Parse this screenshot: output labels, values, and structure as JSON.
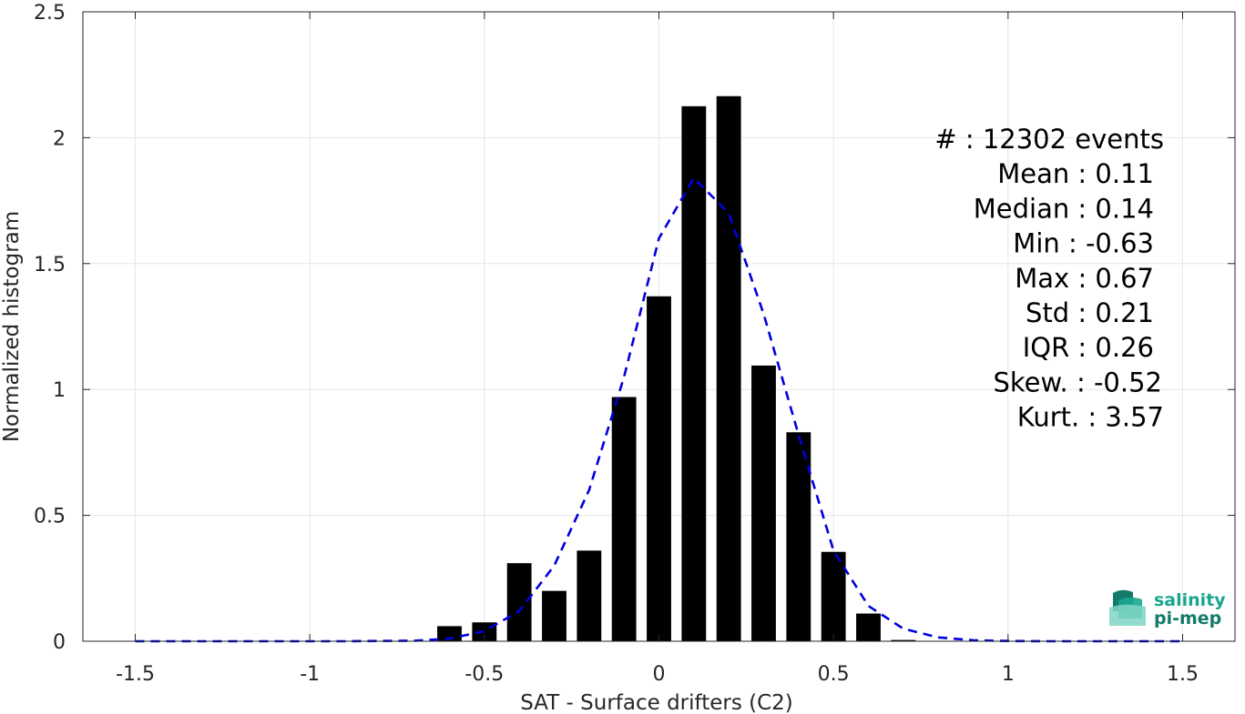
{
  "chart_data": {
    "type": "bar",
    "xlabel": "SAT - Surface drifters (C2)",
    "ylabel": "Normalized histogram",
    "xlim": [
      -1.65,
      1.65
    ],
    "ylim": [
      0,
      2.5
    ],
    "x_ticks": [
      -1.5,
      -1,
      -0.5,
      0,
      0.5,
      1,
      1.5
    ],
    "x_tick_labels": [
      "-1.5",
      "-1",
      "-0.5",
      "0",
      "0.5",
      "1",
      "1.5"
    ],
    "y_ticks": [
      0,
      0.5,
      1,
      1.5,
      2,
      2.5
    ],
    "y_tick_labels": [
      "0",
      "0.5",
      "1",
      "1.5",
      "2",
      "2.5"
    ],
    "grid": true,
    "bar_width": 0.07,
    "bars": {
      "x": [
        -0.6,
        -0.5,
        -0.4,
        -0.3,
        -0.2,
        -0.1,
        0.0,
        0.1,
        0.2,
        0.3,
        0.4,
        0.5,
        0.6,
        0.7
      ],
      "values": [
        0.06,
        0.075,
        0.31,
        0.2,
        0.36,
        0.97,
        1.37,
        2.125,
        2.165,
        1.095,
        0.83,
        0.355,
        0.11,
        0.005
      ],
      "color": "#000000"
    },
    "fit_line": {
      "style": "dashed",
      "color": "#0000dd",
      "x": [
        -1.5,
        -1.4,
        -1.3,
        -1.2,
        -1.1,
        -1.0,
        -0.9,
        -0.8,
        -0.7,
        -0.6,
        -0.5,
        -0.4,
        -0.3,
        -0.2,
        -0.1,
        0.0,
        0.1,
        0.2,
        0.3,
        0.4,
        0.5,
        0.6,
        0.7,
        0.8,
        0.9,
        1.0,
        1.1,
        1.2,
        1.3,
        1.4,
        1.5
      ],
      "y": [
        0,
        0,
        0,
        0,
        0,
        0,
        0,
        0.001,
        0.002,
        0.01,
        0.04,
        0.12,
        0.3,
        0.6,
        1.05,
        1.6,
        1.84,
        1.7,
        1.3,
        0.82,
        0.36,
        0.14,
        0.05,
        0.015,
        0.004,
        0.001,
        0,
        0,
        0,
        0,
        0
      ]
    },
    "stats": [
      {
        "label": "#  : 12302 events"
      },
      {
        "label": "Mean : 0.11"
      },
      {
        "label": "Median : 0.14"
      },
      {
        "label": "Min : -0.63"
      },
      {
        "label": "Max : 0.67"
      },
      {
        "label": "Std : 0.21"
      },
      {
        "label": "IQR : 0.26"
      },
      {
        "label": "Skew. : -0.52"
      },
      {
        "label": "Kurt. : 3.57"
      }
    ]
  },
  "logo": {
    "line1": "salinity",
    "line2": "pi-mep",
    "color": "#1aa58f",
    "dark_color": "#147a6a"
  }
}
